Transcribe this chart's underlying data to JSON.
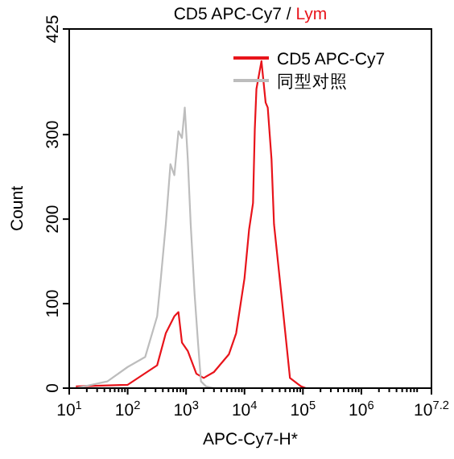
{
  "chart_data": {
    "type": "line",
    "title": "CD5 APC-Cy7 / Lym",
    "xlabel": "APC-Cy7-H*",
    "ylabel": "Count",
    "log": "x",
    "grid": false,
    "legend": "top right",
    "marker": "none",
    "line_style": "solid",
    "xlim": [
      10,
      15848932
    ],
    "xticks": [
      {
        "value": 10,
        "label": "10$^{1}$"
      },
      {
        "value": 100,
        "label": "10$^{2}$"
      },
      {
        "value": 1000,
        "label": "10$^{3}$"
      },
      {
        "value": 10000,
        "label": "10$^{4}$"
      },
      {
        "value": 100000,
        "label": "10$^{5}$"
      },
      {
        "value": 1000000,
        "label": "10$^{6}$"
      },
      {
        "value": 15848932,
        "label": "10$^{7.2}$"
      }
    ],
    "ylim": [
      0,
      425
    ],
    "yticks": [
      0,
      100,
      200,
      300,
      425
    ],
    "series": [
      {
        "name": "CD5 APC-Cy7",
        "color": "#e8141b",
        "x": [
          13,
          100,
          320,
          450,
          630,
          740,
          850,
          1070,
          1500,
          2000,
          3000,
          5400,
          7200,
          10000,
          12000,
          14000,
          15000,
          16000,
          19500,
          23000,
          25000,
          29000,
          32000,
          40000,
          50000,
          60000,
          93000,
          112000
        ],
        "values": [
          2,
          4,
          27,
          65,
          85,
          90,
          54,
          44,
          17,
          12,
          19,
          40,
          65,
          130,
          188,
          219,
          306,
          354,
          387,
          338,
          332,
          271,
          194,
          130,
          65,
          12,
          2,
          0
        ]
      },
      {
        "name": "同型对照",
        "color": "#bdbdbd",
        "x": [
          13,
          45,
          100,
          200,
          320,
          370,
          450,
          540,
          630,
          740,
          850,
          950,
          1070,
          1200,
          1400,
          1600,
          1800,
          2200,
          3000
        ],
        "values": [
          0,
          8,
          25,
          37,
          85,
          130,
          194,
          265,
          252,
          304,
          296,
          332,
          271,
          194,
          111,
          54,
          8,
          2,
          0
        ]
      }
    ]
  }
}
